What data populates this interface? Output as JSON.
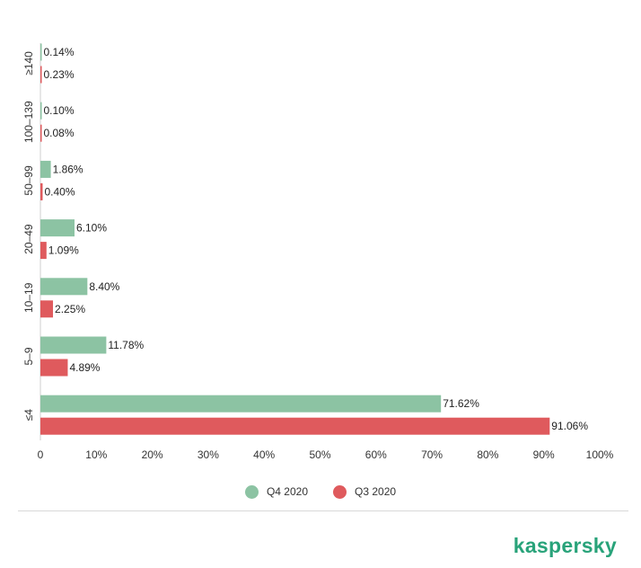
{
  "colors": {
    "q4": "#8cc3a3",
    "q3": "#df5a5d",
    "brand": "#29a37a"
  },
  "chart_data": {
    "type": "bar",
    "orientation": "horizontal",
    "categories": [
      "≥140",
      "100–139",
      "50–99",
      "20–49",
      "10–19",
      "5–9",
      "≤4"
    ],
    "series": [
      {
        "name": "Q4 2020",
        "values": [
          0.14,
          0.1,
          1.86,
          6.1,
          8.4,
          11.78,
          71.62
        ],
        "labels": [
          "0.14%",
          "0.10%",
          "1.86%",
          "6.10%",
          "8.40%",
          "11.78%",
          "71.62%"
        ]
      },
      {
        "name": "Q3 2020",
        "values": [
          0.23,
          0.08,
          0.4,
          1.09,
          2.25,
          4.89,
          91.06
        ],
        "labels": [
          "0.23%",
          "0.08%",
          "0.40%",
          "1.09%",
          "2.25%",
          "4.89%",
          "91.06%"
        ]
      }
    ],
    "xlim": [
      0,
      100
    ],
    "xticks": [
      0,
      10,
      20,
      30,
      40,
      50,
      60,
      70,
      80,
      90,
      100
    ],
    "xtick_labels": [
      "0",
      "10%",
      "20%",
      "30%",
      "40%",
      "50%",
      "60%",
      "70%",
      "80%",
      "90%",
      "100%"
    ],
    "grid": false,
    "legend_position": "bottom-center"
  },
  "legend": {
    "q4_label": "Q4 2020",
    "q3_label": "Q3 2020"
  },
  "brand": {
    "name": "kaspersky"
  }
}
